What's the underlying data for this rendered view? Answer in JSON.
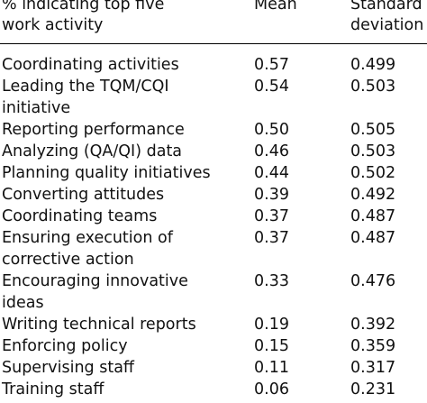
{
  "table": {
    "headers": {
      "activity": "% indicating top five\nwork activity",
      "mean": "Mean",
      "sd": "Standard\ndeviation"
    },
    "rows": [
      {
        "activity": "Coordinating activities",
        "mean": "0.57",
        "sd": "0.499"
      },
      {
        "activity": "Leading the TQM/CQI\ninitiative",
        "mean": "0.54",
        "sd": "0.503"
      },
      {
        "activity": "Reporting performance",
        "mean": "0.50",
        "sd": "0.505"
      },
      {
        "activity": "Analyzing (QA/QI) data",
        "mean": "0.46",
        "sd": "0.503"
      },
      {
        "activity": "Planning quality initiatives",
        "mean": "0.44",
        "sd": "0.502"
      },
      {
        "activity": "Converting attitudes",
        "mean": "0.39",
        "sd": "0.492"
      },
      {
        "activity": "Coordinating teams",
        "mean": "0.37",
        "sd": "0.487"
      },
      {
        "activity": "Ensuring execution of\ncorrective action",
        "mean": "0.37",
        "sd": "0.487"
      },
      {
        "activity": "Encouraging innovative\nideas",
        "mean": "0.33",
        "sd": "0.476"
      },
      {
        "activity": "Writing technical reports",
        "mean": "0.19",
        "sd": "0.392"
      },
      {
        "activity": "Enforcing policy",
        "mean": "0.15",
        "sd": "0.359"
      },
      {
        "activity": "Supervising staff",
        "mean": "0.11",
        "sd": "0.317"
      },
      {
        "activity": "Training staff",
        "mean": "0.06",
        "sd": "0.231"
      }
    ]
  }
}
